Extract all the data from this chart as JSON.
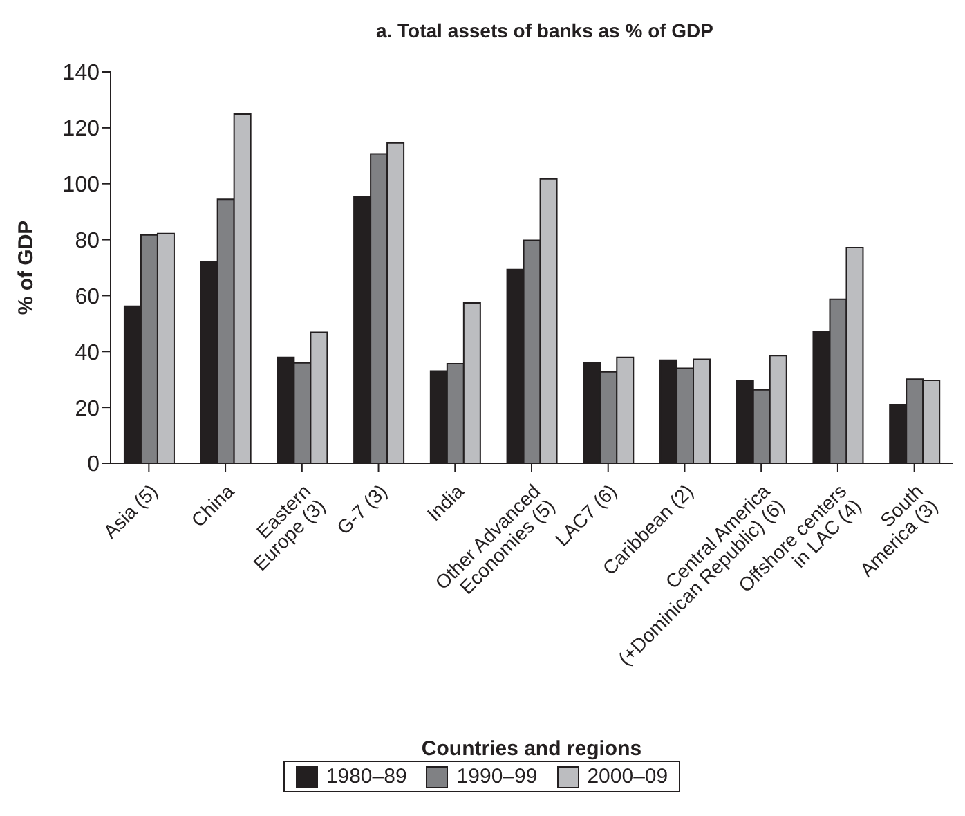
{
  "chart_data": {
    "type": "bar",
    "title": "a. Total assets of banks as % of GDP",
    "xlabel": "Countries and regions",
    "ylabel": "% of GDP",
    "categories": [
      "Asia (5)",
      "China",
      "Eastern\nEurope (3)",
      "G-7 (3)",
      "India",
      "Other Advanced\nEconomies (5)",
      "LAC7 (6)",
      "Caribbean (2)",
      "Central America\n(+Dominican Republic) (6)",
      "Offshore centers\nin LAC (4)",
      "South\nAmerica (3)"
    ],
    "series": [
      {
        "name": "1980–89",
        "color": "#231f20",
        "values": [
          56.2,
          72.2,
          37.9,
          95.4,
          33,
          69.3,
          35.9,
          36.9,
          29.7,
          47.1,
          21
        ]
      },
      {
        "name": "1990–99",
        "color": "#808184",
        "values": [
          81.7,
          94.4,
          35.9,
          110.7,
          35.6,
          79.8,
          32.7,
          34,
          26.3,
          58.7,
          30.1
        ]
      },
      {
        "name": "2000–09",
        "color": "#bcbdc0",
        "values": [
          82.2,
          124.9,
          46.9,
          114.6,
          57.4,
          101.7,
          37.9,
          37.2,
          38.5,
          77.2,
          29.7
        ]
      }
    ],
    "ylim": [
      0,
      140
    ],
    "yticks": [
      0,
      20,
      40,
      60,
      80,
      100,
      120,
      140
    ],
    "grid": false,
    "legend": "bottom"
  }
}
